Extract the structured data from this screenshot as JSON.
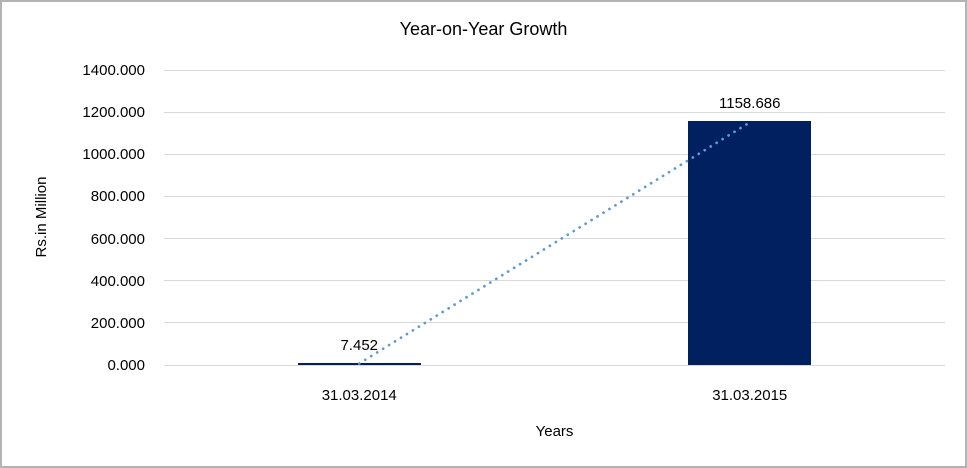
{
  "chart_data": {
    "type": "bar",
    "title": "Year-on-Year Growth",
    "xlabel": "Years",
    "ylabel": "Rs.in Million",
    "categories": [
      "31.03.2014",
      "31.03.2015"
    ],
    "values": [
      7.452,
      1158.686
    ],
    "data_labels": [
      "7.452",
      "1158.686"
    ],
    "ylim": [
      0,
      1400
    ],
    "ytick_step": 200,
    "ytick_labels": [
      "0.000",
      "200.000",
      "400.000",
      "600.000",
      "800.000",
      "1000.000",
      "1200.000",
      "1400.000"
    ],
    "grid": true,
    "legend_position": "none",
    "has_trendline": true,
    "colors": {
      "bar": "#002060",
      "trendline": "#5B9BD5",
      "gridline": "#D9D9D9",
      "text": "#000000",
      "frame_border": "#B3B3B3",
      "background": "#FFFFFF"
    }
  }
}
